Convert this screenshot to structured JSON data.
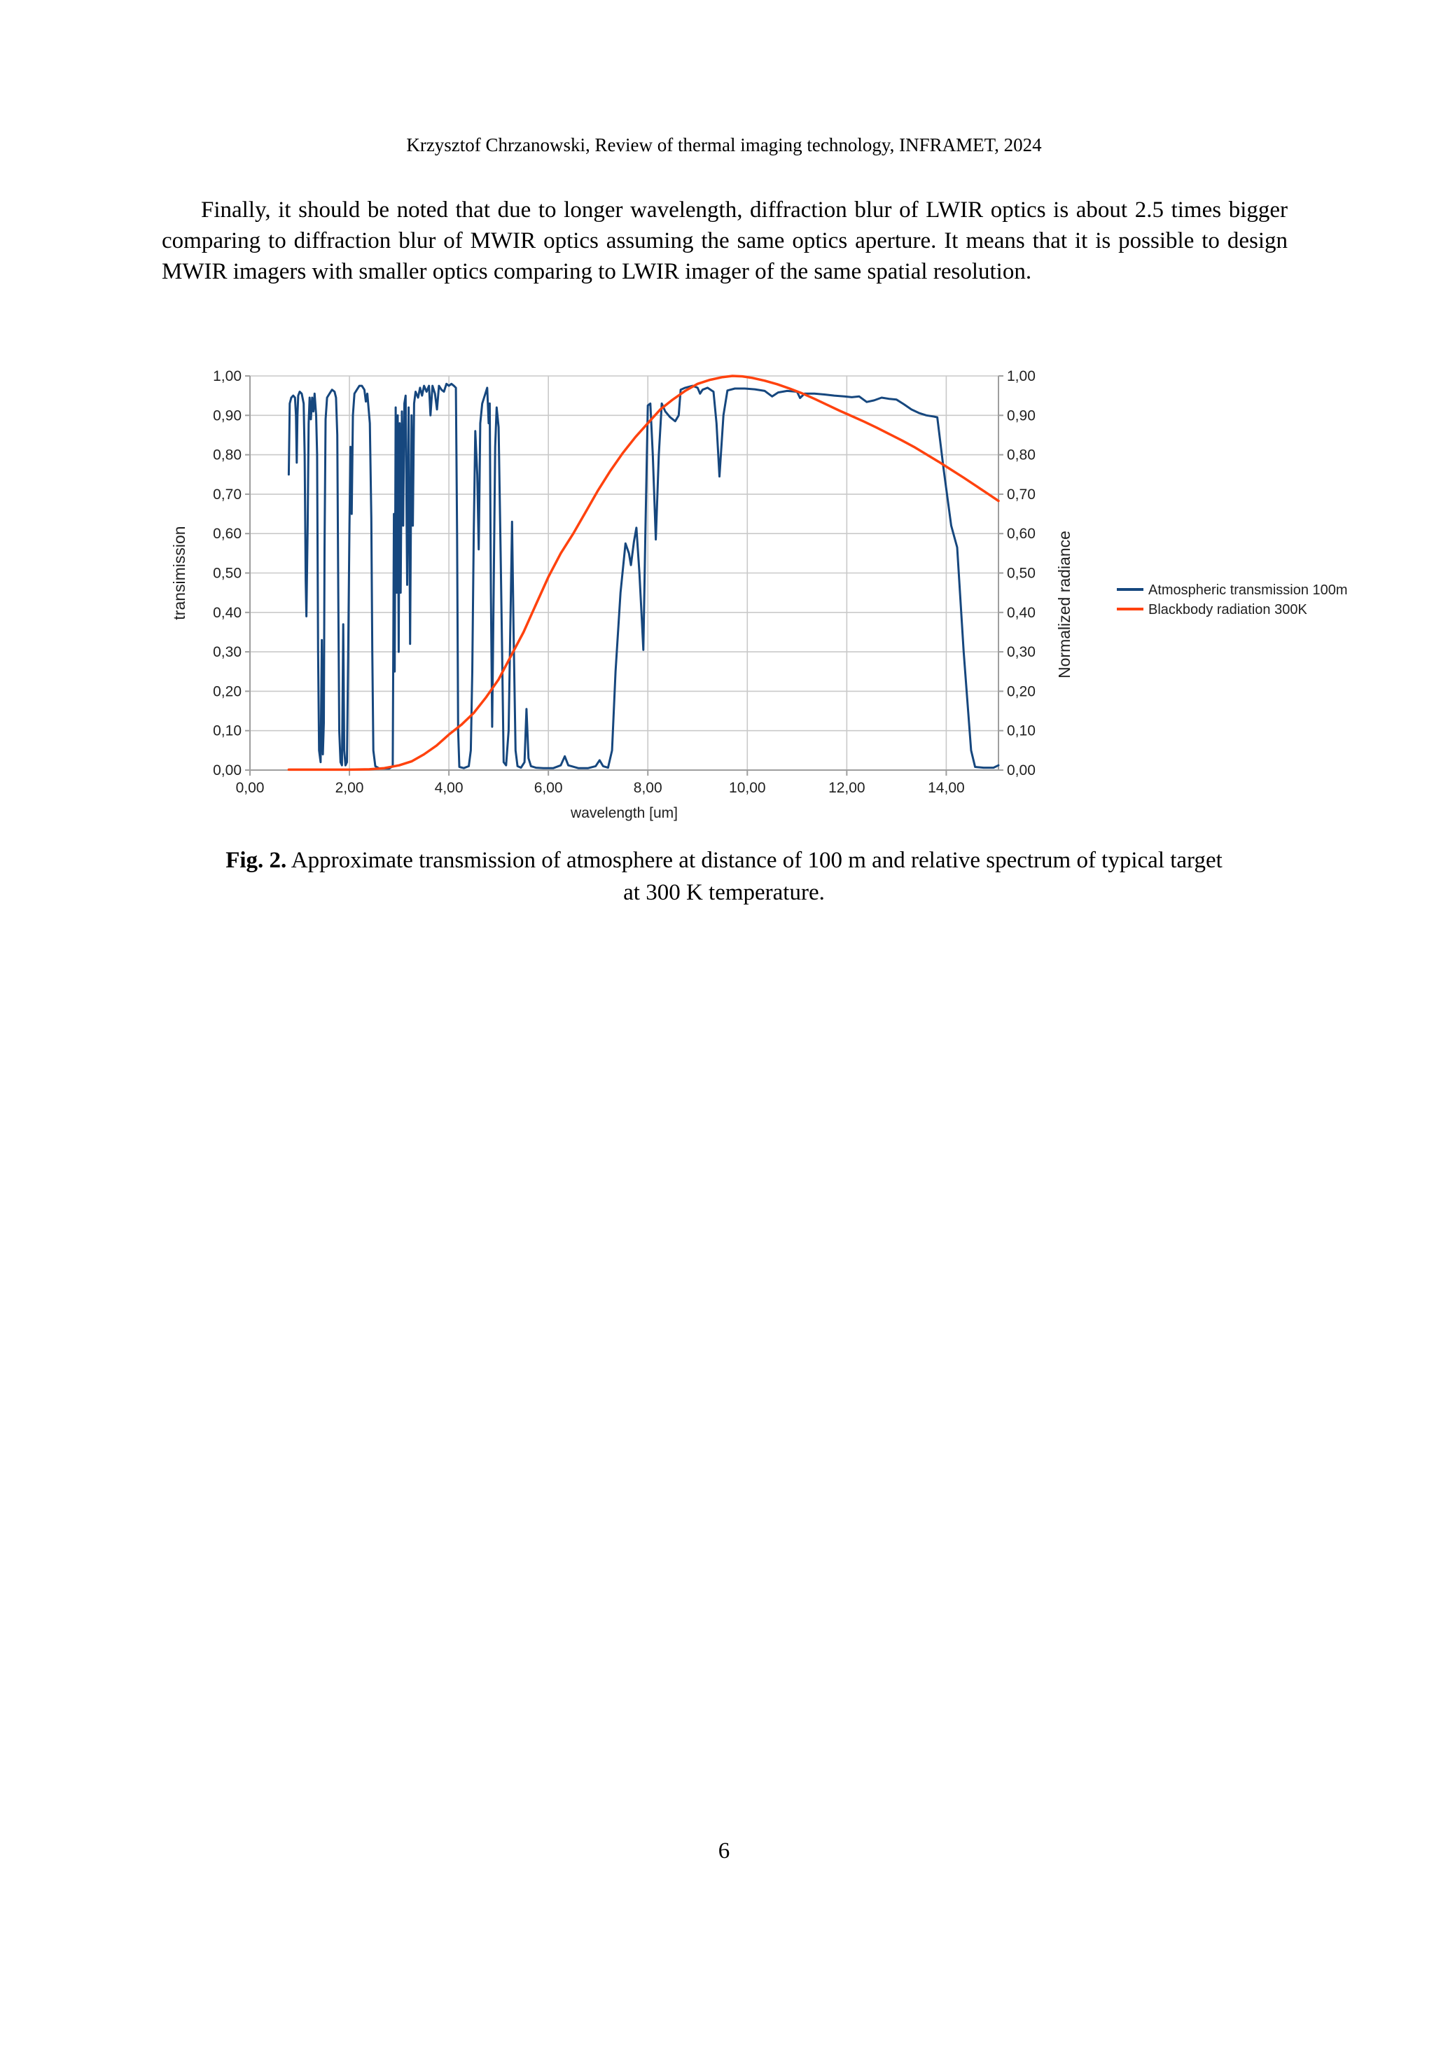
{
  "page": {
    "header": "Krzysztof Chrzanowski, Review of thermal imaging technology, INFRAMET, 2024",
    "paragraph": "Finally, it should be noted that due to longer wavelength, diffraction blur of LWIR optics is about 2.5 times bigger comparing to diffraction blur of MWIR optics assuming the same optics aperture. It means that it is possible to design MWIR imagers with smaller optics comparing to LWIR imager of the same spatial resolution.",
    "caption_label": "Fig. 2.",
    "caption_text": "Approximate transmission of atmosphere at distance of 100 m and relative spectrum of typical target",
    "caption_text2": "at 300 K temperature.",
    "page_number": "6"
  },
  "chart_data": {
    "type": "line",
    "title": "",
    "xlabel": "wavelength [um]",
    "ylabel_left": "transimission",
    "ylabel_right": "Normalized radiance",
    "xlim": [
      0,
      15.05
    ],
    "ylim": [
      0,
      1.0
    ],
    "grid": true,
    "legend_position": "right",
    "x_tick_values": [
      0,
      2,
      4,
      6,
      8,
      10,
      12,
      14
    ],
    "x_tick_labels": [
      "0,00",
      "2,00",
      "4,00",
      "6,00",
      "8,00",
      "10,00",
      "12,00",
      "14,00"
    ],
    "y_tick_values": [
      0,
      0.1,
      0.2,
      0.3,
      0.4,
      0.5,
      0.6,
      0.7,
      0.8,
      0.9,
      1.0
    ],
    "y_tick_labels": [
      "0,00",
      "0,10",
      "0,20",
      "0,30",
      "0,40",
      "0,50",
      "0,60",
      "0,70",
      "0,80",
      "0,90",
      "1,00"
    ],
    "colors": {
      "grid": "#c9c9c9",
      "axis": "#9e9e9e",
      "text": "#1f1f1f"
    },
    "series": [
      {
        "name": "Atmospheric transmission 100m",
        "color": "#16477e",
        "stroke_width": 3,
        "points": [
          [
            0.78,
            0.75
          ],
          [
            0.8,
            0.93
          ],
          [
            0.83,
            0.945
          ],
          [
            0.87,
            0.95
          ],
          [
            0.905,
            0.945
          ],
          [
            0.925,
            0.9
          ],
          [
            0.94,
            0.78
          ],
          [
            0.955,
            0.9
          ],
          [
            0.97,
            0.95
          ],
          [
            1.0,
            0.96
          ],
          [
            1.04,
            0.955
          ],
          [
            1.08,
            0.93
          ],
          [
            1.1,
            0.8
          ],
          [
            1.12,
            0.48
          ],
          [
            1.135,
            0.39
          ],
          [
            1.16,
            0.62
          ],
          [
            1.18,
            0.88
          ],
          [
            1.2,
            0.945
          ],
          [
            1.225,
            0.89
          ],
          [
            1.25,
            0.945
          ],
          [
            1.275,
            0.91
          ],
          [
            1.3,
            0.955
          ],
          [
            1.33,
            0.9
          ],
          [
            1.35,
            0.8
          ],
          [
            1.37,
            0.3
          ],
          [
            1.39,
            0.05
          ],
          [
            1.42,
            0.02
          ],
          [
            1.445,
            0.33
          ],
          [
            1.465,
            0.04
          ],
          [
            1.485,
            0.12
          ],
          [
            1.5,
            0.56
          ],
          [
            1.52,
            0.89
          ],
          [
            1.55,
            0.945
          ],
          [
            1.6,
            0.955
          ],
          [
            1.65,
            0.965
          ],
          [
            1.7,
            0.96
          ],
          [
            1.73,
            0.945
          ],
          [
            1.755,
            0.85
          ],
          [
            1.775,
            0.45
          ],
          [
            1.795,
            0.1
          ],
          [
            1.82,
            0.02
          ],
          [
            1.85,
            0.012
          ],
          [
            1.875,
            0.37
          ],
          [
            1.895,
            0.05
          ],
          [
            1.92,
            0.012
          ],
          [
            1.95,
            0.02
          ],
          [
            1.975,
            0.3
          ],
          [
            2.0,
            0.62
          ],
          [
            2.02,
            0.82
          ],
          [
            2.045,
            0.65
          ],
          [
            2.07,
            0.9
          ],
          [
            2.1,
            0.955
          ],
          [
            2.15,
            0.965
          ],
          [
            2.2,
            0.975
          ],
          [
            2.25,
            0.975
          ],
          [
            2.3,
            0.965
          ],
          [
            2.33,
            0.935
          ],
          [
            2.36,
            0.955
          ],
          [
            2.41,
            0.88
          ],
          [
            2.44,
            0.64
          ],
          [
            2.46,
            0.3
          ],
          [
            2.48,
            0.05
          ],
          [
            2.52,
            0.01
          ],
          [
            2.6,
            0.004
          ],
          [
            2.7,
            0.004
          ],
          [
            2.8,
            0.004
          ],
          [
            2.87,
            0.01
          ],
          [
            2.895,
            0.65
          ],
          [
            2.91,
            0.25
          ],
          [
            2.93,
            0.92
          ],
          [
            2.95,
            0.45
          ],
          [
            2.97,
            0.9
          ],
          [
            2.99,
            0.3
          ],
          [
            3.01,
            0.88
          ],
          [
            3.03,
            0.45
          ],
          [
            3.055,
            0.91
          ],
          [
            3.08,
            0.62
          ],
          [
            3.105,
            0.93
          ],
          [
            3.13,
            0.95
          ],
          [
            3.16,
            0.47
          ],
          [
            3.19,
            0.92
          ],
          [
            3.22,
            0.32
          ],
          [
            3.25,
            0.9
          ],
          [
            3.275,
            0.62
          ],
          [
            3.3,
            0.93
          ],
          [
            3.33,
            0.96
          ],
          [
            3.38,
            0.945
          ],
          [
            3.42,
            0.97
          ],
          [
            3.46,
            0.95
          ],
          [
            3.5,
            0.975
          ],
          [
            3.55,
            0.96
          ],
          [
            3.6,
            0.975
          ],
          [
            3.63,
            0.9
          ],
          [
            3.67,
            0.975
          ],
          [
            3.72,
            0.955
          ],
          [
            3.76,
            0.915
          ],
          [
            3.8,
            0.975
          ],
          [
            3.85,
            0.965
          ],
          [
            3.9,
            0.96
          ],
          [
            3.95,
            0.98
          ],
          [
            4.0,
            0.975
          ],
          [
            4.05,
            0.98
          ],
          [
            4.1,
            0.975
          ],
          [
            4.14,
            0.97
          ],
          [
            4.165,
            0.6
          ],
          [
            4.185,
            0.1
          ],
          [
            4.21,
            0.008
          ],
          [
            4.3,
            0.005
          ],
          [
            4.4,
            0.01
          ],
          [
            4.44,
            0.05
          ],
          [
            4.47,
            0.25
          ],
          [
            4.5,
            0.6
          ],
          [
            4.53,
            0.86
          ],
          [
            4.57,
            0.75
          ],
          [
            4.6,
            0.56
          ],
          [
            4.63,
            0.88
          ],
          [
            4.67,
            0.93
          ],
          [
            4.72,
            0.95
          ],
          [
            4.77,
            0.97
          ],
          [
            4.8,
            0.88
          ],
          [
            4.82,
            0.93
          ],
          [
            4.845,
            0.45
          ],
          [
            4.87,
            0.11
          ],
          [
            4.9,
            0.45
          ],
          [
            4.93,
            0.82
          ],
          [
            4.96,
            0.92
          ],
          [
            5.0,
            0.87
          ],
          [
            5.04,
            0.55
          ],
          [
            5.07,
            0.3
          ],
          [
            5.1,
            0.02
          ],
          [
            5.15,
            0.012
          ],
          [
            5.2,
            0.1
          ],
          [
            5.24,
            0.4
          ],
          [
            5.27,
            0.63
          ],
          [
            5.3,
            0.35
          ],
          [
            5.34,
            0.05
          ],
          [
            5.38,
            0.01
          ],
          [
            5.45,
            0.006
          ],
          [
            5.52,
            0.02
          ],
          [
            5.56,
            0.155
          ],
          [
            5.6,
            0.03
          ],
          [
            5.65,
            0.01
          ],
          [
            5.75,
            0.006
          ],
          [
            5.9,
            0.005
          ],
          [
            6.1,
            0.005
          ],
          [
            6.25,
            0.012
          ],
          [
            6.33,
            0.035
          ],
          [
            6.4,
            0.012
          ],
          [
            6.6,
            0.005
          ],
          [
            6.8,
            0.005
          ],
          [
            6.95,
            0.01
          ],
          [
            7.03,
            0.025
          ],
          [
            7.1,
            0.01
          ],
          [
            7.2,
            0.006
          ],
          [
            7.28,
            0.05
          ],
          [
            7.35,
            0.25
          ],
          [
            7.45,
            0.45
          ],
          [
            7.55,
            0.575
          ],
          [
            7.62,
            0.55
          ],
          [
            7.66,
            0.52
          ],
          [
            7.72,
            0.58
          ],
          [
            7.77,
            0.615
          ],
          [
            7.83,
            0.5
          ],
          [
            7.88,
            0.38
          ],
          [
            7.91,
            0.305
          ],
          [
            7.95,
            0.6
          ],
          [
            8.0,
            0.925
          ],
          [
            8.05,
            0.93
          ],
          [
            8.1,
            0.8
          ],
          [
            8.16,
            0.585
          ],
          [
            8.22,
            0.8
          ],
          [
            8.28,
            0.93
          ],
          [
            8.35,
            0.91
          ],
          [
            8.45,
            0.895
          ],
          [
            8.55,
            0.885
          ],
          [
            8.62,
            0.9
          ],
          [
            8.66,
            0.965
          ],
          [
            8.75,
            0.97
          ],
          [
            8.9,
            0.975
          ],
          [
            9.0,
            0.97
          ],
          [
            9.05,
            0.955
          ],
          [
            9.1,
            0.965
          ],
          [
            9.2,
            0.97
          ],
          [
            9.32,
            0.96
          ],
          [
            9.38,
            0.88
          ],
          [
            9.44,
            0.745
          ],
          [
            9.52,
            0.9
          ],
          [
            9.6,
            0.963
          ],
          [
            9.75,
            0.968
          ],
          [
            9.95,
            0.968
          ],
          [
            10.15,
            0.966
          ],
          [
            10.35,
            0.962
          ],
          [
            10.5,
            0.948
          ],
          [
            10.62,
            0.958
          ],
          [
            10.8,
            0.962
          ],
          [
            11.0,
            0.96
          ],
          [
            11.06,
            0.944
          ],
          [
            11.15,
            0.955
          ],
          [
            11.35,
            0.955
          ],
          [
            11.55,
            0.953
          ],
          [
            11.75,
            0.95
          ],
          [
            11.95,
            0.948
          ],
          [
            12.1,
            0.946
          ],
          [
            12.25,
            0.948
          ],
          [
            12.4,
            0.934
          ],
          [
            12.55,
            0.938
          ],
          [
            12.7,
            0.945
          ],
          [
            12.85,
            0.942
          ],
          [
            13.0,
            0.94
          ],
          [
            13.15,
            0.928
          ],
          [
            13.3,
            0.915
          ],
          [
            13.45,
            0.906
          ],
          [
            13.6,
            0.9
          ],
          [
            13.75,
            0.897
          ],
          [
            13.82,
            0.895
          ],
          [
            13.95,
            0.76
          ],
          [
            14.1,
            0.62
          ],
          [
            14.22,
            0.565
          ],
          [
            14.35,
            0.3
          ],
          [
            14.5,
            0.05
          ],
          [
            14.58,
            0.008
          ],
          [
            14.75,
            0.006
          ],
          [
            14.95,
            0.006
          ],
          [
            15.05,
            0.012
          ]
        ]
      },
      {
        "name": "Blackbody radiation 300K",
        "color": "#ff420e",
        "stroke_width": 3.5,
        "points": [
          [
            0.78,
            0.001
          ],
          [
            1.5,
            0.001
          ],
          [
            2.0,
            0.001
          ],
          [
            2.4,
            0.002
          ],
          [
            2.7,
            0.005
          ],
          [
            3.0,
            0.012
          ],
          [
            3.25,
            0.022
          ],
          [
            3.5,
            0.04
          ],
          [
            3.75,
            0.062
          ],
          [
            4.0,
            0.09
          ],
          [
            4.25,
            0.115
          ],
          [
            4.5,
            0.145
          ],
          [
            4.75,
            0.185
          ],
          [
            5.0,
            0.23
          ],
          [
            5.25,
            0.29
          ],
          [
            5.5,
            0.35
          ],
          [
            5.75,
            0.42
          ],
          [
            6.0,
            0.49
          ],
          [
            6.25,
            0.55
          ],
          [
            6.5,
            0.6
          ],
          [
            6.75,
            0.655
          ],
          [
            7.0,
            0.71
          ],
          [
            7.25,
            0.76
          ],
          [
            7.5,
            0.805
          ],
          [
            7.75,
            0.845
          ],
          [
            8.0,
            0.88
          ],
          [
            8.25,
            0.915
          ],
          [
            8.5,
            0.94
          ],
          [
            8.75,
            0.962
          ],
          [
            9.0,
            0.98
          ],
          [
            9.25,
            0.99
          ],
          [
            9.5,
            0.997
          ],
          [
            9.7,
            1.0
          ],
          [
            9.9,
            0.999
          ],
          [
            10.1,
            0.995
          ],
          [
            10.35,
            0.988
          ],
          [
            10.6,
            0.979
          ],
          [
            10.85,
            0.968
          ],
          [
            11.1,
            0.956
          ],
          [
            11.35,
            0.942
          ],
          [
            11.6,
            0.927
          ],
          [
            11.85,
            0.912
          ],
          [
            12.1,
            0.898
          ],
          [
            12.35,
            0.884
          ],
          [
            12.6,
            0.869
          ],
          [
            12.85,
            0.853
          ],
          [
            13.1,
            0.837
          ],
          [
            13.35,
            0.82
          ],
          [
            13.6,
            0.801
          ],
          [
            13.85,
            0.782
          ],
          [
            14.1,
            0.762
          ],
          [
            14.35,
            0.742
          ],
          [
            14.6,
            0.721
          ],
          [
            14.85,
            0.7
          ],
          [
            15.05,
            0.683
          ]
        ]
      }
    ]
  }
}
